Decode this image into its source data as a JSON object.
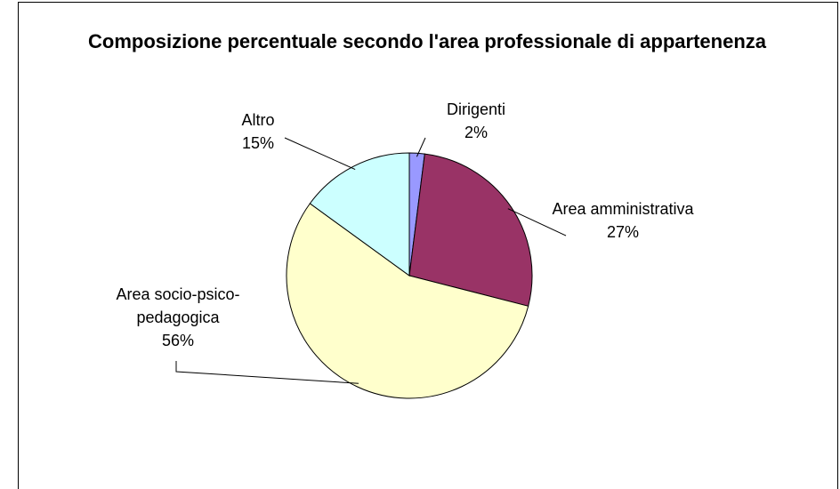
{
  "chart_data": {
    "type": "pie",
    "title": "Composizione percentuale secondo l'area professionale di appartenenza",
    "categories": [
      "Dirigenti",
      "Area amministrativa",
      "Area socio-psico-pedagogica",
      "Altro"
    ],
    "values": [
      2,
      27,
      56,
      15
    ],
    "value_labels": [
      "2%",
      "27%",
      "56%",
      "15%"
    ],
    "colors": [
      "#9999ff",
      "#993366",
      "#ffffcc",
      "#ccffff"
    ]
  }
}
